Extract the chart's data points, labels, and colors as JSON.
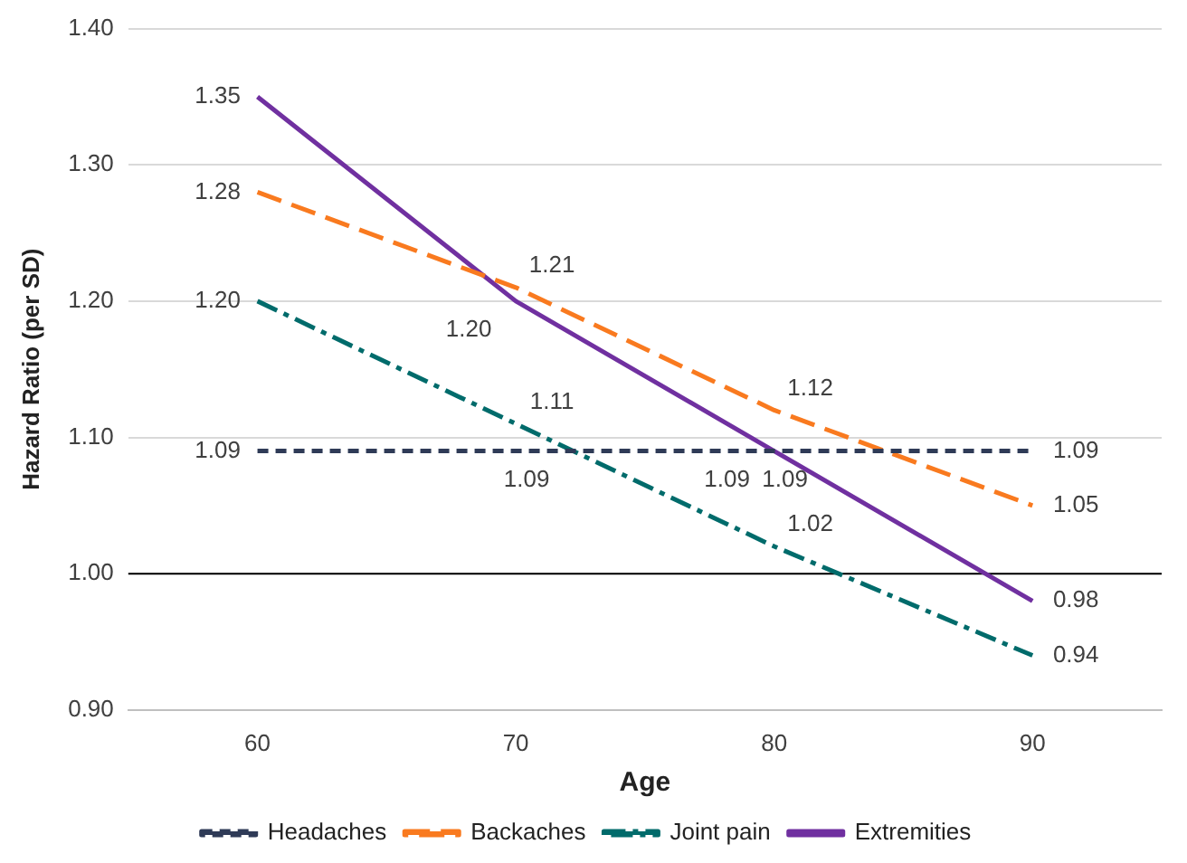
{
  "chart_data": {
    "type": "line",
    "xlabel": "Age",
    "ylabel": "Hazard Ratio (per SD)",
    "categories": [
      "60",
      "70",
      "80",
      "90"
    ],
    "series": [
      {
        "name": "Headaches",
        "color": "#2f3b57",
        "line_style": "dashed",
        "values": [
          1.09,
          1.09,
          1.09,
          1.09
        ],
        "value_labels": [
          "1.09",
          "1.09",
          "1.09",
          "1.09"
        ]
      },
      {
        "name": "Backaches",
        "color": "#f97a1f",
        "line_style": "dashed",
        "values": [
          1.28,
          1.21,
          1.12,
          1.05
        ],
        "value_labels": [
          "1.28",
          "1.21",
          "1.12",
          "1.05"
        ]
      },
      {
        "name": "Joint pain",
        "color": "#006b6b",
        "line_style": "dashed",
        "values": [
          1.2,
          1.11,
          1.02,
          0.94
        ],
        "value_labels": [
          "1.20",
          "1.11",
          "1.02",
          "0.94"
        ]
      },
      {
        "name": "Extremities",
        "color": "#7030a0",
        "line_style": "solid",
        "values": [
          1.35,
          1.2,
          1.09,
          0.98
        ],
        "value_labels": [
          "1.35",
          "1.20",
          "1.09",
          "0.98"
        ]
      }
    ],
    "ylim": [
      0.9,
      1.4
    ],
    "yticks": [
      {
        "value": 0.9,
        "label": "0.90"
      },
      {
        "value": 1.0,
        "label": "1.00"
      },
      {
        "value": 1.1,
        "label": "1.10"
      },
      {
        "value": 1.2,
        "label": "1.20"
      },
      {
        "value": 1.3,
        "label": "1.30"
      },
      {
        "value": 1.4,
        "label": "1.40"
      }
    ],
    "ref_lines": [
      {
        "axis": "y",
        "value": 1.0,
        "label": null,
        "color": "#000000"
      }
    ],
    "grid": "y",
    "legend": "bottom",
    "marker": "none"
  }
}
